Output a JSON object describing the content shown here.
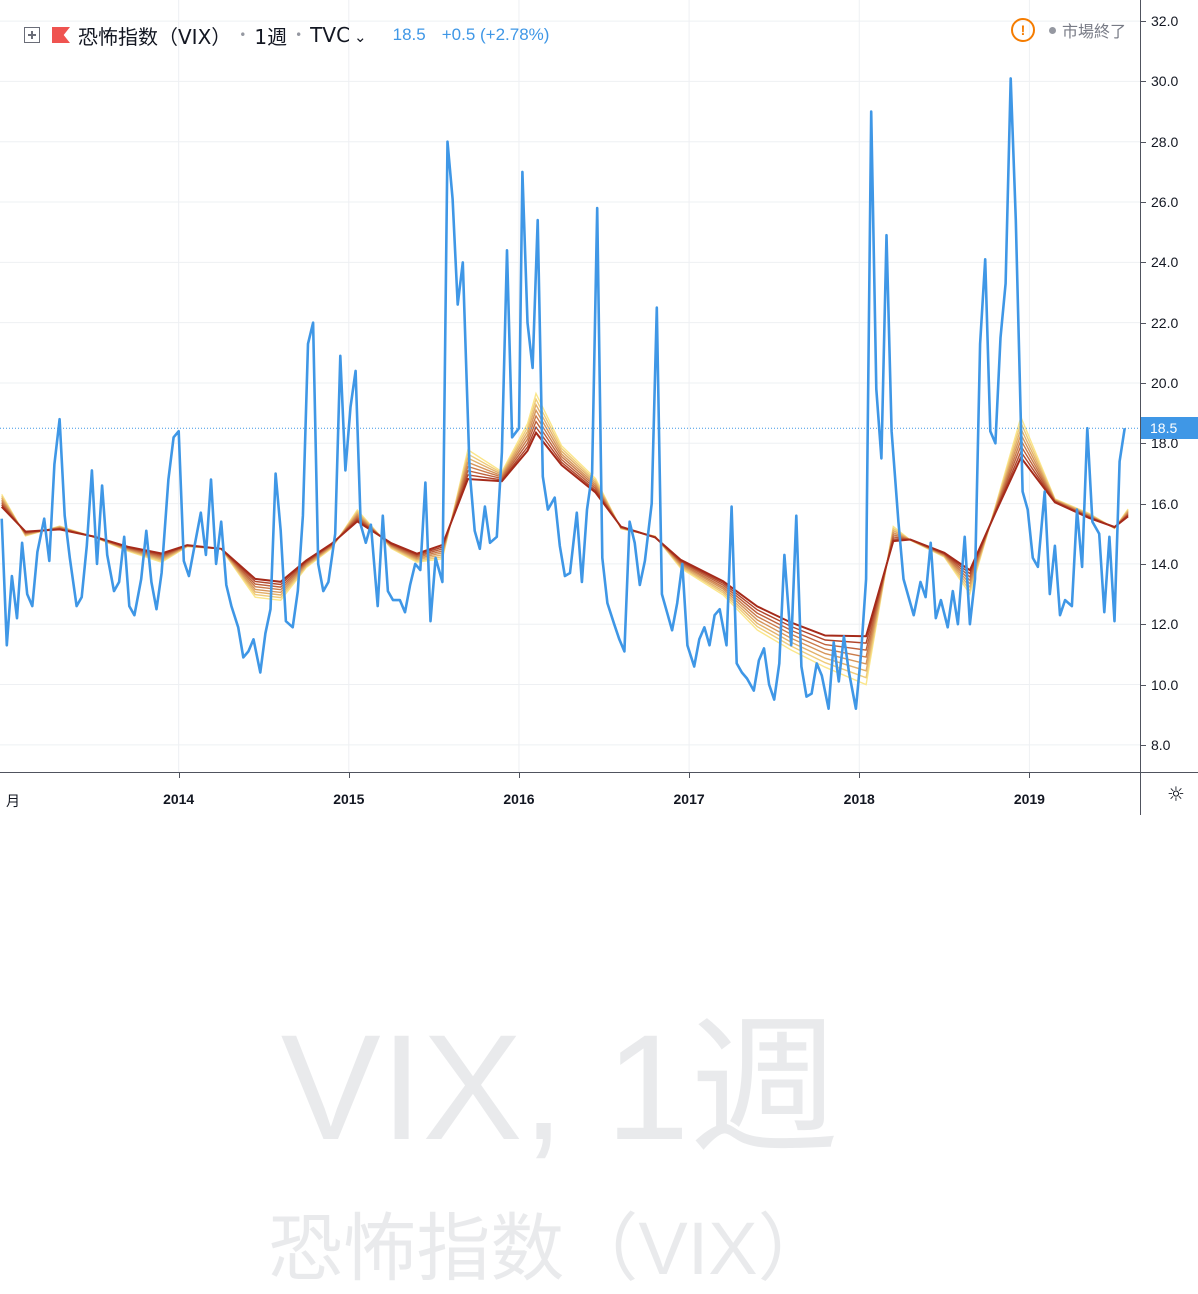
{
  "header": {
    "symbol_name": "恐怖指数（VIX）",
    "interval": "1週",
    "exchange": "TVC",
    "last": "18.5",
    "change": "+0.5 (+2.78%)",
    "status": "市場終了"
  },
  "watermark": {
    "line1": "VIX, 1週",
    "line2": "恐怖指数（VIX）"
  },
  "price_tag": "18.5",
  "corner_label": "月",
  "colors": {
    "price_line": "#3f97e6",
    "ribbon_light": "#fbe68a",
    "ribbon_dark": "#a52a1a",
    "grid": "#eef0f3"
  },
  "chart_data": {
    "type": "line",
    "title": "",
    "xlabel": "",
    "ylabel": "",
    "x_range": [
      2012.95,
      2019.65
    ],
    "ylim": [
      7.1,
      32.7
    ],
    "y_ticks": [
      "8.0",
      "10.0",
      "12.0",
      "14.0",
      "16.0",
      "18.0",
      "20.0",
      "22.0",
      "24.0",
      "26.0",
      "28.0",
      "30.0",
      "32.0"
    ],
    "x_ticks": [
      "2014",
      "2015",
      "2016",
      "2017",
      "2018",
      "2019"
    ],
    "grid": true,
    "last_value": 18.5,
    "series": [
      {
        "kind": "price",
        "points": [
          [
            2012.96,
            15.5
          ],
          [
            2012.99,
            11.3
          ],
          [
            2013.02,
            13.6
          ],
          [
            2013.05,
            12.2
          ],
          [
            2013.08,
            14.7
          ],
          [
            2013.11,
            13.0
          ],
          [
            2013.14,
            12.6
          ],
          [
            2013.17,
            14.4
          ],
          [
            2013.21,
            15.5
          ],
          [
            2013.24,
            14.1
          ],
          [
            2013.27,
            17.3
          ],
          [
            2013.3,
            18.8
          ],
          [
            2013.33,
            15.6
          ],
          [
            2013.36,
            14.2
          ],
          [
            2013.4,
            12.6
          ],
          [
            2013.43,
            12.9
          ],
          [
            2013.46,
            14.6
          ],
          [
            2013.49,
            17.1
          ],
          [
            2013.52,
            14.0
          ],
          [
            2013.55,
            16.6
          ],
          [
            2013.58,
            14.3
          ],
          [
            2013.62,
            13.1
          ],
          [
            2013.65,
            13.4
          ],
          [
            2013.68,
            14.9
          ],
          [
            2013.71,
            12.6
          ],
          [
            2013.74,
            12.3
          ],
          [
            2013.78,
            13.5
          ],
          [
            2013.81,
            15.1
          ],
          [
            2013.84,
            13.4
          ],
          [
            2013.87,
            12.5
          ],
          [
            2013.9,
            13.7
          ],
          [
            2013.94,
            16.8
          ],
          [
            2013.97,
            18.2
          ],
          [
            2014.0,
            18.4
          ],
          [
            2014.03,
            14.1
          ],
          [
            2014.06,
            13.6
          ],
          [
            2014.1,
            14.8
          ],
          [
            2014.13,
            15.7
          ],
          [
            2014.16,
            14.3
          ],
          [
            2014.19,
            16.8
          ],
          [
            2014.22,
            14.0
          ],
          [
            2014.25,
            15.4
          ],
          [
            2014.28,
            13.3
          ],
          [
            2014.31,
            12.6
          ],
          [
            2014.35,
            11.9
          ],
          [
            2014.38,
            10.9
          ],
          [
            2014.41,
            11.1
          ],
          [
            2014.44,
            11.5
          ],
          [
            2014.48,
            10.4
          ],
          [
            2014.51,
            11.7
          ],
          [
            2014.54,
            12.5
          ],
          [
            2014.57,
            17.0
          ],
          [
            2014.6,
            15.1
          ],
          [
            2014.63,
            12.1
          ],
          [
            2014.67,
            11.9
          ],
          [
            2014.7,
            13.1
          ],
          [
            2014.73,
            15.6
          ],
          [
            2014.76,
            21.3
          ],
          [
            2014.79,
            22.0
          ],
          [
            2014.82,
            14.0
          ],
          [
            2014.85,
            13.1
          ],
          [
            2014.88,
            13.4
          ],
          [
            2014.92,
            15.0
          ],
          [
            2014.95,
            20.9
          ],
          [
            2014.98,
            17.1
          ],
          [
            2015.01,
            19.2
          ],
          [
            2015.04,
            20.4
          ],
          [
            2015.07,
            15.3
          ],
          [
            2015.1,
            14.7
          ],
          [
            2015.13,
            15.3
          ],
          [
            2015.17,
            12.6
          ],
          [
            2015.2,
            15.6
          ],
          [
            2015.23,
            13.1
          ],
          [
            2015.26,
            12.8
          ],
          [
            2015.3,
            12.8
          ],
          [
            2015.33,
            12.4
          ],
          [
            2015.36,
            13.3
          ],
          [
            2015.39,
            14.0
          ],
          [
            2015.42,
            13.8
          ],
          [
            2015.45,
            16.7
          ],
          [
            2015.48,
            12.1
          ],
          [
            2015.51,
            14.2
          ],
          [
            2015.55,
            13.4
          ],
          [
            2015.58,
            28.0
          ],
          [
            2015.61,
            26.1
          ],
          [
            2015.64,
            22.6
          ],
          [
            2015.67,
            24.0
          ],
          [
            2015.71,
            17.1
          ],
          [
            2015.74,
            15.1
          ],
          [
            2015.77,
            14.5
          ],
          [
            2015.8,
            15.9
          ],
          [
            2015.83,
            14.7
          ],
          [
            2015.87,
            14.9
          ],
          [
            2015.9,
            17.7
          ],
          [
            2015.93,
            24.4
          ],
          [
            2015.96,
            18.2
          ],
          [
            2016.0,
            18.5
          ],
          [
            2016.02,
            27.0
          ],
          [
            2016.05,
            22.0
          ],
          [
            2016.08,
            20.5
          ],
          [
            2016.11,
            25.4
          ],
          [
            2016.14,
            16.9
          ],
          [
            2016.17,
            15.8
          ],
          [
            2016.21,
            16.2
          ],
          [
            2016.24,
            14.6
          ],
          [
            2016.27,
            13.6
          ],
          [
            2016.3,
            13.7
          ],
          [
            2016.34,
            15.7
          ],
          [
            2016.37,
            13.4
          ],
          [
            2016.4,
            15.8
          ],
          [
            2016.43,
            17.0
          ],
          [
            2016.46,
            25.8
          ],
          [
            2016.49,
            14.2
          ],
          [
            2016.52,
            12.7
          ],
          [
            2016.56,
            12.0
          ],
          [
            2016.59,
            11.5
          ],
          [
            2016.62,
            11.1
          ],
          [
            2016.65,
            15.4
          ],
          [
            2016.68,
            14.7
          ],
          [
            2016.71,
            13.3
          ],
          [
            2016.74,
            14.1
          ],
          [
            2016.78,
            16.0
          ],
          [
            2016.81,
            22.5
          ],
          [
            2016.84,
            13.0
          ],
          [
            2016.87,
            12.4
          ],
          [
            2016.9,
            11.8
          ],
          [
            2016.93,
            12.7
          ],
          [
            2016.96,
            14.0
          ],
          [
            2016.99,
            11.3
          ],
          [
            2017.03,
            10.6
          ],
          [
            2017.06,
            11.5
          ],
          [
            2017.09,
            11.9
          ],
          [
            2017.12,
            11.3
          ],
          [
            2017.15,
            12.3
          ],
          [
            2017.18,
            12.5
          ],
          [
            2017.22,
            11.3
          ],
          [
            2017.25,
            15.9
          ],
          [
            2017.28,
            10.7
          ],
          [
            2017.31,
            10.4
          ],
          [
            2017.34,
            10.2
          ],
          [
            2017.38,
            9.8
          ],
          [
            2017.41,
            10.8
          ],
          [
            2017.44,
            11.2
          ],
          [
            2017.47,
            10.0
          ],
          [
            2017.5,
            9.5
          ],
          [
            2017.53,
            10.7
          ],
          [
            2017.56,
            14.3
          ],
          [
            2017.6,
            11.3
          ],
          [
            2017.63,
            15.6
          ],
          [
            2017.66,
            10.6
          ],
          [
            2017.69,
            9.6
          ],
          [
            2017.72,
            9.7
          ],
          [
            2017.75,
            10.7
          ],
          [
            2017.78,
            10.3
          ],
          [
            2017.82,
            9.2
          ],
          [
            2017.85,
            11.4
          ],
          [
            2017.88,
            10.1
          ],
          [
            2017.91,
            11.6
          ],
          [
            2017.94,
            10.4
          ],
          [
            2017.98,
            9.2
          ],
          [
            2018.01,
            11.0
          ],
          [
            2018.04,
            13.5
          ],
          [
            2018.07,
            29.0
          ],
          [
            2018.1,
            19.8
          ],
          [
            2018.13,
            17.5
          ],
          [
            2018.16,
            24.9
          ],
          [
            2018.19,
            18.4
          ],
          [
            2018.23,
            15.4
          ],
          [
            2018.26,
            13.5
          ],
          [
            2018.29,
            12.9
          ],
          [
            2018.32,
            12.3
          ],
          [
            2018.36,
            13.4
          ],
          [
            2018.39,
            12.9
          ],
          [
            2018.42,
            14.7
          ],
          [
            2018.45,
            12.2
          ],
          [
            2018.48,
            12.8
          ],
          [
            2018.52,
            11.9
          ],
          [
            2018.55,
            13.1
          ],
          [
            2018.58,
            12.0
          ],
          [
            2018.62,
            14.9
          ],
          [
            2018.65,
            12.0
          ],
          [
            2018.68,
            13.5
          ],
          [
            2018.71,
            21.3
          ],
          [
            2018.74,
            24.1
          ],
          [
            2018.77,
            18.4
          ],
          [
            2018.8,
            18.0
          ],
          [
            2018.83,
            21.5
          ],
          [
            2018.86,
            23.3
          ],
          [
            2018.89,
            30.1
          ],
          [
            2018.92,
            25.4
          ],
          [
            2018.96,
            16.4
          ],
          [
            2018.99,
            15.8
          ],
          [
            2019.02,
            14.2
          ],
          [
            2019.05,
            13.9
          ],
          [
            2019.09,
            16.4
          ],
          [
            2019.12,
            13.0
          ],
          [
            2019.15,
            14.6
          ],
          [
            2019.18,
            12.3
          ],
          [
            2019.21,
            12.8
          ],
          [
            2019.25,
            12.6
          ],
          [
            2019.28,
            15.8
          ],
          [
            2019.31,
            13.9
          ],
          [
            2019.34,
            18.5
          ],
          [
            2019.37,
            15.4
          ],
          [
            2019.41,
            15.0
          ],
          [
            2019.44,
            12.4
          ],
          [
            2019.47,
            14.9
          ],
          [
            2019.5,
            12.1
          ],
          [
            2019.53,
            17.4
          ],
          [
            2019.56,
            18.5
          ]
        ]
      },
      {
        "kind": "ribbon-base",
        "points": [
          [
            2012.96,
            16.1
          ],
          [
            2013.1,
            15.0
          ],
          [
            2013.3,
            15.2
          ],
          [
            2013.5,
            14.9
          ],
          [
            2013.7,
            14.5
          ],
          [
            2013.9,
            14.2
          ],
          [
            2014.05,
            14.6
          ],
          [
            2014.25,
            14.5
          ],
          [
            2014.45,
            13.2
          ],
          [
            2014.6,
            13.1
          ],
          [
            2014.75,
            14.0
          ],
          [
            2014.9,
            14.6
          ],
          [
            2015.05,
            15.6
          ],
          [
            2015.25,
            14.6
          ],
          [
            2015.4,
            14.2
          ],
          [
            2015.55,
            14.4
          ],
          [
            2015.7,
            17.3
          ],
          [
            2015.9,
            16.9
          ],
          [
            2016.05,
            18.2
          ],
          [
            2016.1,
            19.0
          ],
          [
            2016.25,
            17.6
          ],
          [
            2016.45,
            16.6
          ],
          [
            2016.6,
            15.2
          ],
          [
            2016.8,
            14.9
          ],
          [
            2016.95,
            14.0
          ],
          [
            2017.2,
            13.2
          ],
          [
            2017.4,
            12.2
          ],
          [
            2017.6,
            11.6
          ],
          [
            2017.8,
            11.1
          ],
          [
            2018.04,
            10.8
          ],
          [
            2018.2,
            15.0
          ],
          [
            2018.3,
            14.8
          ],
          [
            2018.5,
            14.3
          ],
          [
            2018.65,
            13.4
          ],
          [
            2018.8,
            15.8
          ],
          [
            2018.95,
            18.2
          ],
          [
            2019.15,
            16.1
          ],
          [
            2019.35,
            15.6
          ],
          [
            2019.5,
            15.2
          ],
          [
            2019.58,
            15.7
          ]
        ]
      }
    ]
  }
}
